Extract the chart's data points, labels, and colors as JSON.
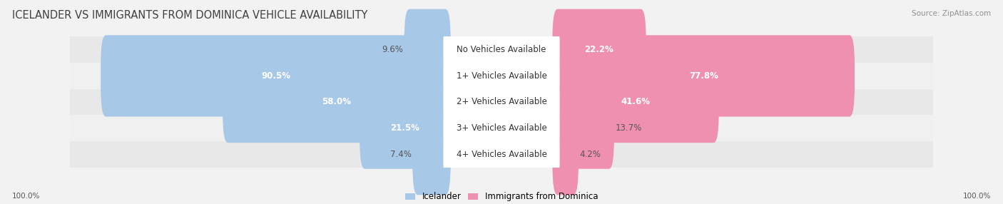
{
  "title": "ICELANDER VS IMMIGRANTS FROM DOMINICA VEHICLE AVAILABILITY",
  "source": "Source: ZipAtlas.com",
  "categories": [
    "No Vehicles Available",
    "1+ Vehicles Available",
    "2+ Vehicles Available",
    "3+ Vehicles Available",
    "4+ Vehicles Available"
  ],
  "icelander_values": [
    9.6,
    90.5,
    58.0,
    21.5,
    7.4
  ],
  "dominica_values": [
    22.2,
    77.8,
    41.6,
    13.7,
    4.2
  ],
  "icelander_color": "#a8c8e8",
  "dominica_color": "#f090b0",
  "background_color": "#f2f2f2",
  "row_bg_even": "#e8e8e8",
  "row_bg_odd": "#f0f0f0",
  "footer_label": "100.0%",
  "legend_icelander": "Icelander",
  "legend_dominica": "Immigrants from Dominica",
  "title_color": "#404040",
  "source_color": "#909090",
  "label_fontsize": 8.5,
  "title_fontsize": 10.5
}
